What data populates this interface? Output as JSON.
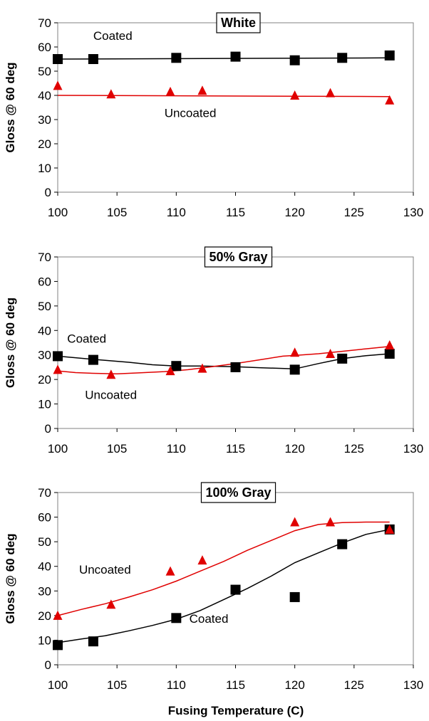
{
  "chart_data": [
    {
      "type": "scatter",
      "title": "White",
      "xlabel": "",
      "ylabel": "Gloss @ 60 deg",
      "xlim": [
        100,
        130
      ],
      "ylim": [
        0,
        70
      ],
      "x_ticks": [
        "100",
        "105",
        "110",
        "115",
        "120",
        "125",
        "130"
      ],
      "y_ticks": [
        "0",
        "10",
        "20",
        "30",
        "40",
        "50",
        "60",
        "70"
      ],
      "grid": false,
      "series": [
        {
          "name": "Coated",
          "marker": "square",
          "color": "#000000",
          "points": [
            [
              100,
              55
            ],
            [
              103,
              55
            ],
            [
              110,
              55.5
            ],
            [
              115,
              56
            ],
            [
              120,
              54.5
            ],
            [
              124,
              55.5
            ],
            [
              128,
              56.5
            ]
          ],
          "trend": [
            [
              100,
              55
            ],
            [
              128,
              55.5
            ]
          ]
        },
        {
          "name": "Uncoated",
          "marker": "triangle",
          "color": "#e00000",
          "points": [
            [
              100,
              44
            ],
            [
              104.5,
              40.5
            ],
            [
              109.5,
              41.5
            ],
            [
              112.2,
              42
            ],
            [
              120,
              40
            ],
            [
              123,
              41
            ],
            [
              128,
              38
            ]
          ],
          "trend": [
            [
              100,
              40
            ],
            [
              128,
              39.5
            ]
          ]
        }
      ],
      "annotations": [
        {
          "text": "Coated",
          "x": 103,
          "y": 63
        },
        {
          "text": "Uncoated",
          "x": 109,
          "y": 31
        }
      ]
    },
    {
      "type": "scatter",
      "title": "50% Gray",
      "xlabel": "",
      "ylabel": "Gloss @ 60 deg",
      "xlim": [
        100,
        130
      ],
      "ylim": [
        0,
        70
      ],
      "x_ticks": [
        "100",
        "105",
        "110",
        "115",
        "120",
        "125",
        "130"
      ],
      "y_ticks": [
        "0",
        "10",
        "20",
        "30",
        "40",
        "50",
        "60",
        "70"
      ],
      "grid": false,
      "series": [
        {
          "name": "Coated",
          "marker": "square",
          "color": "#000000",
          "points": [
            [
              100,
              29.5
            ],
            [
              103,
              28
            ],
            [
              110,
              25.5
            ],
            [
              115,
              25
            ],
            [
              120,
              24
            ],
            [
              124,
              28.5
            ],
            [
              128,
              30.5
            ]
          ],
          "trend": [
            [
              100,
              29.5
            ],
            [
              103,
              28.2
            ],
            [
              106,
              27
            ],
            [
              108,
              26
            ],
            [
              110,
              25.5
            ],
            [
              112,
              25.5
            ],
            [
              115,
              25.2
            ],
            [
              117,
              24.8
            ],
            [
              120,
              24.3
            ],
            [
              122,
              26.5
            ],
            [
              124,
              28.5
            ],
            [
              126,
              29.7
            ],
            [
              128,
              30.5
            ]
          ]
        },
        {
          "name": "Uncoated",
          "marker": "triangle",
          "color": "#e00000",
          "points": [
            [
              100,
              24
            ],
            [
              104.5,
              22
            ],
            [
              109.5,
              23.5
            ],
            [
              112.2,
              24.5
            ],
            [
              120,
              31
            ],
            [
              123,
              30.5
            ],
            [
              128,
              34
            ]
          ],
          "trend": [
            [
              100,
              23.5
            ],
            [
              101.5,
              22.8
            ],
            [
              103,
              22.5
            ],
            [
              105,
              22.3
            ],
            [
              107,
              22.7
            ],
            [
              109,
              23.2
            ],
            [
              111,
              24
            ],
            [
              113,
              25.2
            ],
            [
              115,
              26.5
            ],
            [
              117,
              28
            ],
            [
              119,
              29.5
            ],
            [
              120,
              29.8
            ],
            [
              122,
              30.5
            ],
            [
              124,
              31.5
            ],
            [
              126,
              32.5
            ],
            [
              128,
              33.5
            ]
          ]
        }
      ],
      "annotations": [
        {
          "text": "Coated",
          "x": 100.8,
          "y": 35
        },
        {
          "text": "Uncoated",
          "x": 102.3,
          "y": 12
        }
      ]
    },
    {
      "type": "scatter",
      "title": "100% Gray",
      "xlabel": "Fusing Temperature (C)",
      "ylabel": "Gloss @ 60 deg",
      "xlim": [
        100,
        130
      ],
      "ylim": [
        0,
        70
      ],
      "x_ticks": [
        "100",
        "105",
        "110",
        "115",
        "120",
        "125",
        "130"
      ],
      "y_ticks": [
        "0",
        "10",
        "20",
        "30",
        "40",
        "50",
        "60",
        "70"
      ],
      "grid": false,
      "series": [
        {
          "name": "Coated",
          "marker": "square",
          "color": "#000000",
          "points": [
            [
              100,
              8
            ],
            [
              103,
              9.5
            ],
            [
              110,
              19
            ],
            [
              115,
              30.5
            ],
            [
              120,
              27.5
            ],
            [
              124,
              49
            ],
            [
              128,
              55
            ]
          ],
          "trend": [
            [
              100,
              9
            ],
            [
              102,
              10.5
            ],
            [
              104,
              11.8
            ],
            [
              106,
              13.8
            ],
            [
              108,
              16
            ],
            [
              110,
              18.5
            ],
            [
              112,
              22
            ],
            [
              114,
              26.5
            ],
            [
              116,
              31
            ],
            [
              118,
              36
            ],
            [
              120,
              41.5
            ],
            [
              122,
              45.5
            ],
            [
              124,
              49.5
            ],
            [
              126,
              53
            ],
            [
              128,
              55
            ]
          ]
        },
        {
          "name": "Uncoated",
          "marker": "triangle",
          "color": "#e00000",
          "points": [
            [
              100,
              20
            ],
            [
              104.5,
              24.5
            ],
            [
              109.5,
              38
            ],
            [
              112.2,
              42.5
            ],
            [
              120,
              58
            ],
            [
              123,
              58
            ],
            [
              128,
              55
            ]
          ],
          "trend": [
            [
              100,
              20
            ],
            [
              102,
              22.5
            ],
            [
              104,
              24.8
            ],
            [
              106,
              27.5
            ],
            [
              108,
              30.5
            ],
            [
              110,
              34
            ],
            [
              112,
              38
            ],
            [
              114,
              42
            ],
            [
              116,
              46.5
            ],
            [
              118,
              50.5
            ],
            [
              120,
              54.5
            ],
            [
              122,
              57
            ],
            [
              124,
              57.8
            ],
            [
              126,
              58
            ],
            [
              128,
              58
            ]
          ]
        }
      ],
      "annotations": [
        {
          "text": "Uncoated",
          "x": 101.8,
          "y": 37
        },
        {
          "text": "Coated",
          "x": 111.1,
          "y": 17
        }
      ]
    }
  ]
}
